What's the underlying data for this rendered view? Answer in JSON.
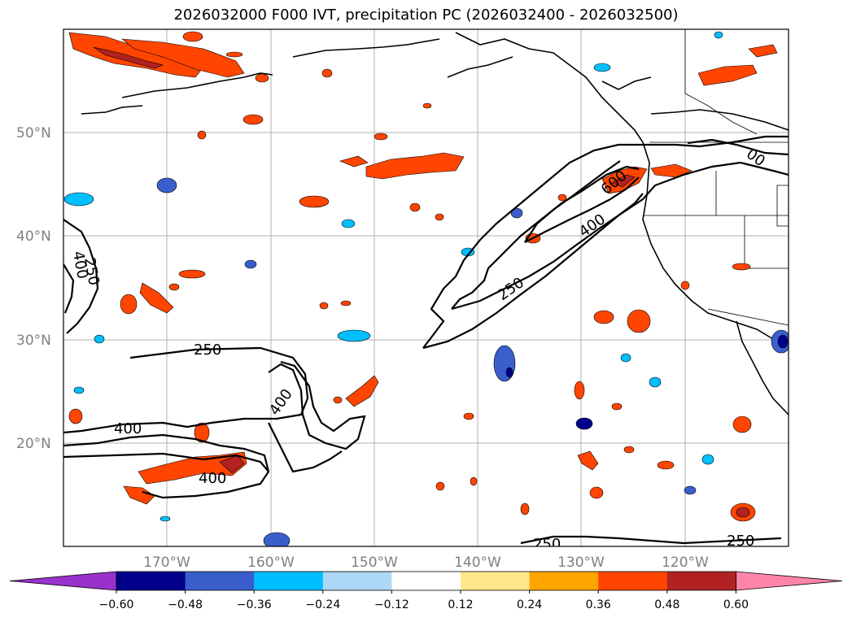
{
  "title": "2026032000 F000 IVT, precipitation PC (2026032400 - 2026032500)",
  "lat_labels": [
    "50°N",
    "40°N",
    "30°N",
    "20°N"
  ],
  "lon_labels": [
    "170°W",
    "160°W",
    "150°W",
    "140°W",
    "130°W",
    "120°W"
  ],
  "contour_labels": [
    "250",
    "400",
    "250",
    "400",
    "400",
    "400",
    "250",
    "400",
    "600",
    "250",
    "250",
    "00"
  ],
  "colorbar": {
    "ticks": [
      "−0.60",
      "−0.48",
      "−0.36",
      "−0.24",
      "−0.12",
      "0.12",
      "0.24",
      "0.36",
      "0.48",
      "0.60"
    ],
    "colors": [
      "#9932cc",
      "#00008b",
      "#3a5fcd",
      "#00bfff",
      "#add8f5",
      "#ffffff",
      "#ffe88a",
      "#ffa500",
      "#ff4500",
      "#b22222",
      "#ff85a8"
    ]
  }
}
